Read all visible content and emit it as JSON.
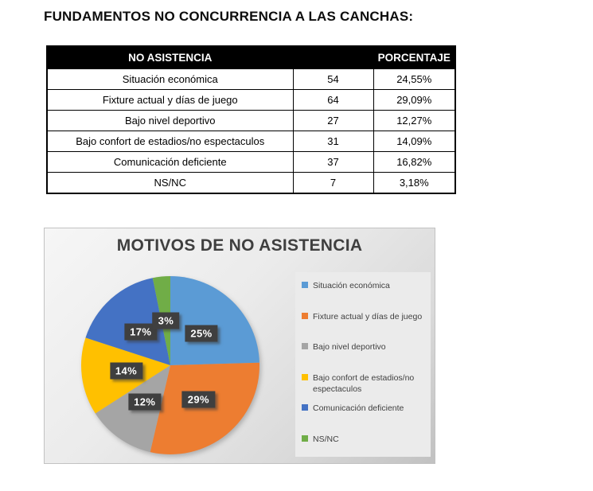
{
  "page": {
    "title": "FUNDAMENTOS NO CONCURRENCIA A LAS CANCHAS:"
  },
  "table": {
    "headers": [
      "NO ASISTENCIA",
      "",
      "PORCENTAJE"
    ],
    "rows": [
      {
        "label": "Situación económica",
        "count": "54",
        "pct": "24,55%"
      },
      {
        "label": "Fixture actual y días de juego",
        "count": "64",
        "pct": "29,09%"
      },
      {
        "label": "Bajo nivel deportivo",
        "count": "27",
        "pct": "12,27%"
      },
      {
        "label": "Bajo confort de estadios/no espectaculos",
        "count": "31",
        "pct": "14,09%"
      },
      {
        "label": "Comunicación deficiente",
        "count": "37",
        "pct": "16,82%"
      },
      {
        "label": "NS/NC",
        "count": "7",
        "pct": "3,18%"
      }
    ]
  },
  "chart_data": {
    "type": "pie",
    "title": "MOTIVOS DE NO ASISTENCIA",
    "categories": [
      "Situación económica",
      "Fixture actual y días de juego",
      "Bajo nivel deportivo",
      "Bajo confort de estadios/no espectaculos",
      "Comunicación deficiente",
      "NS/NC"
    ],
    "values": [
      54,
      64,
      27,
      31,
      37,
      7
    ],
    "percent_labels": [
      "25%",
      "29%",
      "12%",
      "14%",
      "17%",
      "3%"
    ],
    "colors": [
      "#5B9BD5",
      "#ED7D31",
      "#A5A5A5",
      "#FFC000",
      "#4472C4",
      "#70AD47"
    ],
    "legend_position": "right",
    "start_angle_deg": 0,
    "label_box_color": "#3F3F3F",
    "label_text_color": "#FFFFFF"
  }
}
